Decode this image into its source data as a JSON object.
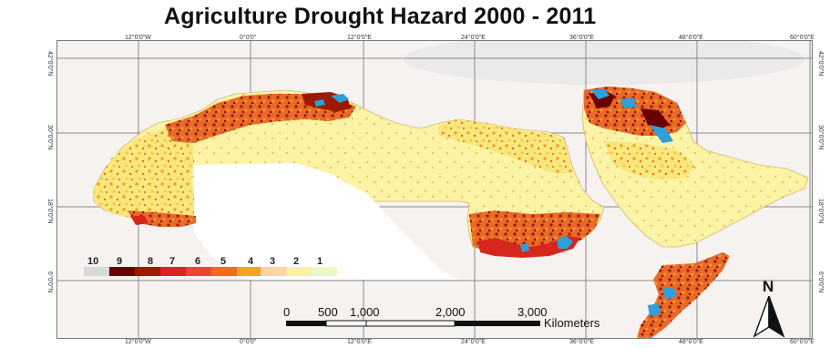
{
  "title": "Agriculture Drought Hazard 2000 - 2011",
  "graticule": {
    "top_labels": [
      "12°0'0\"W",
      "0°0'0\"",
      "12°0'0\"E",
      "24°0'0\"E",
      "36°0'0\"E",
      "48°0'0\"E",
      "60°0'0\"E"
    ],
    "left_labels": [
      "42°0'0\"N",
      "30°0'0\"N",
      "18°0'0\"N",
      "6°0'0\"N"
    ]
  },
  "legend": {
    "classes": [
      {
        "label": "10",
        "color": "#d9d9d9"
      },
      {
        "label": "9",
        "color": "#6b0000"
      },
      {
        "label": "8",
        "color": "#9c1a00"
      },
      {
        "label": "7",
        "color": "#d7261b"
      },
      {
        "label": "6",
        "color": "#e8492a"
      },
      {
        "label": "5",
        "color": "#ef6c1c"
      },
      {
        "label": "4",
        "color": "#f6a31f"
      },
      {
        "label": "3",
        "color": "#fbd4a2"
      },
      {
        "label": "2",
        "color": "#fbf2a0"
      },
      {
        "label": "1",
        "color": "#eef7c8"
      }
    ]
  },
  "scale_bar": {
    "ticks": [
      "0",
      "500",
      "1,000",
      "2,000",
      "3,000"
    ],
    "unit": "Kilometers"
  },
  "north_arrow": {
    "label": "N"
  },
  "colors": {
    "water": "#2e9fd8",
    "hazard_low": "#fbf2a0",
    "hazard_high": "#9c1a00"
  }
}
